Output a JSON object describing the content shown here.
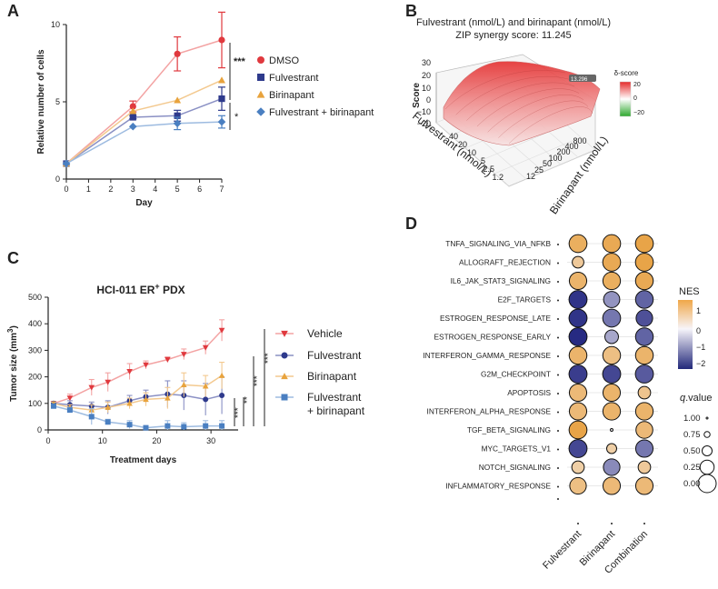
{
  "panel_labels": [
    "A",
    "B",
    "C",
    "D"
  ],
  "chart_data": [
    {
      "id": "A",
      "type": "line",
      "xlabel": "Day",
      "ylabel": "Relative number of cells",
      "x_ticks": [
        0,
        1,
        2,
        3,
        4,
        5,
        6,
        7
      ],
      "y_ticks": [
        0,
        5,
        10
      ],
      "xlim": [
        0,
        7
      ],
      "ylim": [
        0,
        10
      ],
      "x": [
        0,
        3,
        5,
        7
      ],
      "series": [
        {
          "name": "DMSO",
          "color": "#e0393e",
          "marker": "circle",
          "values": [
            1,
            4.7,
            8.1,
            9.0
          ],
          "errors": [
            0,
            0.35,
            1.1,
            1.8
          ]
        },
        {
          "name": "Fulvestrant",
          "color": "#2e3a8c",
          "marker": "square",
          "values": [
            1,
            4.0,
            4.1,
            5.2
          ],
          "errors": [
            0,
            0.1,
            0.35,
            0.75
          ]
        },
        {
          "name": "Birinapant",
          "color": "#e8a33d",
          "marker": "triangle",
          "values": [
            1,
            4.4,
            5.1,
            6.4
          ],
          "errors": [
            0,
            0,
            0,
            0
          ]
        },
        {
          "name": "Fulvestrant + birinapant",
          "color": "#4a7fc1",
          "marker": "diamond",
          "values": [
            1,
            3.4,
            3.6,
            3.7
          ],
          "errors": [
            0,
            0,
            0.4,
            0.4
          ]
        }
      ],
      "significance": [
        "***",
        "*"
      ]
    },
    {
      "id": "B",
      "type": "surface",
      "title": "Fulvestrant (nmol/L) and birinapant (nmol/L)",
      "subtitle": "ZIP synergy score: 11.245",
      "zlabel": "Score",
      "z_ticks": [
        "30",
        "20",
        "10",
        "0",
        "−10",
        "−20"
      ],
      "xlabel": "Fulvestrant (nmol/L)",
      "x_ticks": [
        "40",
        "20",
        "10",
        "5",
        "2.5",
        "1.2"
      ],
      "ylabel": "Birinapant (nmol/L)",
      "y_ticks": [
        "800",
        "400",
        "200",
        "100",
        "50",
        "25",
        "12"
      ],
      "colorbar_label": "δ-score",
      "colorbar_ticks": [
        "20",
        "0",
        "−20"
      ],
      "peak_label": "13.296"
    },
    {
      "id": "C",
      "type": "line",
      "title_main": "HCI-011 ER",
      "title_sup": "+",
      "title_tail": " PDX",
      "xlabel": "Treatment days",
      "ylabel_main": "Tumor size (mm",
      "ylabel_sup": "3",
      "ylabel_tail": ")",
      "x_ticks": [
        0,
        10,
        20,
        30
      ],
      "y_ticks": [
        0,
        100,
        200,
        300,
        400,
        500
      ],
      "xlim": [
        0,
        35
      ],
      "ylim": [
        0,
        500
      ],
      "series": [
        {
          "name": "Vehicle",
          "color": "#e0393e",
          "marker": "triangle-down",
          "x": [
            1,
            4,
            8,
            11,
            15,
            18,
            22,
            25,
            29,
            32
          ],
          "values": [
            100,
            120,
            160,
            180,
            220,
            245,
            265,
            285,
            310,
            375
          ],
          "errors": [
            5,
            15,
            30,
            35,
            30,
            15,
            10,
            20,
            25,
            40
          ]
        },
        {
          "name": "Fulvestrant",
          "color": "#2e3a8c",
          "marker": "circle",
          "x": [
            1,
            4,
            8,
            11,
            15,
            18,
            22,
            25,
            29,
            32
          ],
          "values": [
            100,
            95,
            90,
            85,
            110,
            125,
            135,
            130,
            115,
            130
          ],
          "errors": [
            5,
            15,
            15,
            25,
            20,
            25,
            50,
            55,
            60,
            70
          ]
        },
        {
          "name": "Birinapant",
          "color": "#e8a33d",
          "marker": "triangle",
          "x": [
            1,
            4,
            8,
            11,
            15,
            18,
            22,
            25,
            29,
            32
          ],
          "values": [
            100,
            85,
            75,
            85,
            100,
            115,
            120,
            170,
            165,
            205
          ],
          "errors": [
            5,
            10,
            20,
            20,
            20,
            25,
            40,
            45,
            40,
            50
          ]
        },
        {
          "name": "Fulvestrant\n+ birinapant",
          "color": "#4a7fc1",
          "marker": "square",
          "x": [
            1,
            4,
            8,
            11,
            15,
            18,
            22,
            25,
            29,
            32
          ],
          "values": [
            90,
            75,
            50,
            30,
            20,
            8,
            15,
            12,
            15,
            15
          ],
          "errors": [
            5,
            10,
            30,
            10,
            15,
            8,
            20,
            15,
            20,
            20
          ]
        }
      ],
      "legend_lines": [
        "Vehicle",
        "Fulvestrant",
        "Birinapant",
        "Fulvestrant",
        "+ birinapant"
      ],
      "significance": [
        "***",
        "***",
        "**",
        "***"
      ]
    },
    {
      "id": "D",
      "type": "dot",
      "pathways": [
        "TNFA_SIGNALING_VIA_NFKB",
        "ALLOGRAFT_REJECTION",
        "IL6_JAK_STAT3_SIGNALING",
        "E2F_TARGETS",
        "ESTROGEN_RESPONSE_LATE",
        "ESTROGEN_RESPONSE_EARLY",
        "INTERFERON_GAMMA_RESPONSE",
        "G2M_CHECKPOINT",
        "APOPTOSIS",
        "INTERFERON_ALPHA_RESPONSE",
        "TGF_BETA_SIGNALING",
        "MYC_TARGETS_V1",
        "NOTCH_SIGNALING",
        "INFLAMMATORY_RESPONSE"
      ],
      "conditions": [
        "Fulvestrant",
        "Birinapant",
        "Combination"
      ],
      "nes": [
        [
          1.3,
          1.4,
          1.5
        ],
        [
          0.8,
          1.4,
          1.5
        ],
        [
          1.2,
          1.3,
          1.4
        ],
        [
          -2.0,
          -1.0,
          -1.5
        ],
        [
          -2.0,
          -1.3,
          -1.7
        ],
        [
          -2.1,
          -0.8,
          -1.5
        ],
        [
          1.2,
          1.0,
          1.2
        ],
        [
          -1.9,
          -1.8,
          -1.6
        ],
        [
          1.1,
          1.2,
          0.9
        ],
        [
          1.1,
          1.2,
          1.2
        ],
        [
          1.5,
          0.0,
          1.1
        ],
        [
          -1.8,
          0.7,
          -1.3
        ],
        [
          0.7,
          -1.1,
          0.8
        ],
        [
          1.0,
          1.1,
          1.1
        ]
      ],
      "qvalue": [
        [
          0.02,
          0.02,
          0.02
        ],
        [
          0.4,
          0.02,
          0.02
        ],
        [
          0.05,
          0.04,
          0.03
        ],
        [
          0.01,
          0.12,
          0.03
        ],
        [
          0.01,
          0.02,
          0.1
        ],
        [
          0.01,
          0.28,
          0.03
        ],
        [
          0.03,
          0.03,
          0.03
        ],
        [
          0.01,
          0.01,
          0.01
        ],
        [
          0.05,
          0.05,
          0.35
        ],
        [
          0.05,
          0.04,
          0.04
        ],
        [
          0.02,
          0.95,
          0.08
        ],
        [
          0.01,
          0.5,
          0.05
        ],
        [
          0.35,
          0.1,
          0.35
        ],
        [
          0.1,
          0.05,
          0.05
        ]
      ],
      "nes_title": "NES",
      "nes_ticks": [
        "1",
        "0",
        "−1",
        "−2"
      ],
      "q_title": "q",
      "q_title_tail": ".value",
      "q_ticks": [
        "1.00",
        "0.75",
        "0.50",
        "0.25",
        "0.00"
      ]
    }
  ]
}
